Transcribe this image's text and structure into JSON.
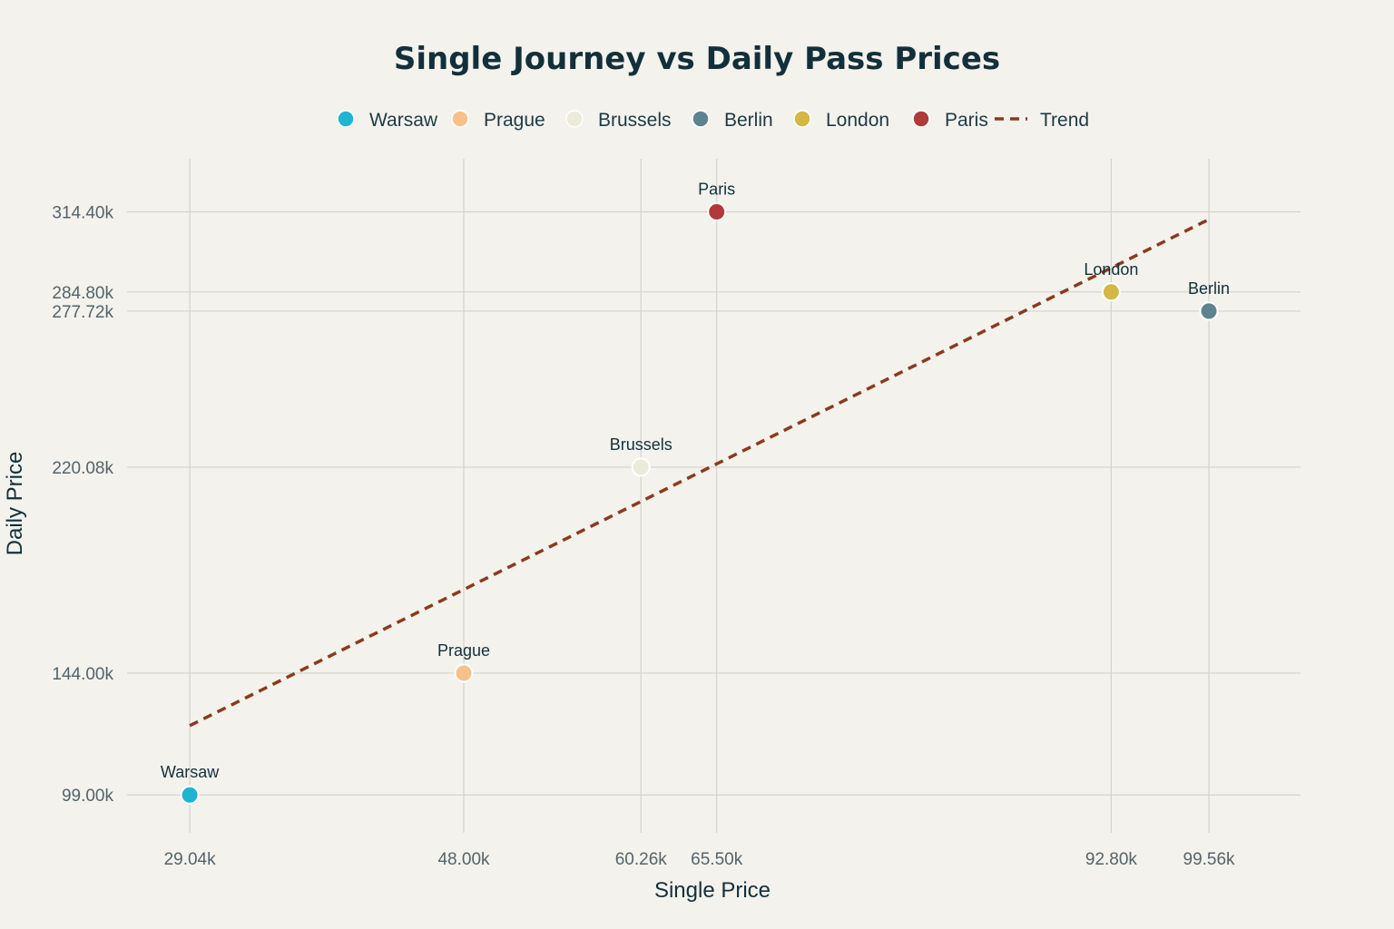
{
  "chart_data": {
    "type": "scatter",
    "title": "Single Journey vs Daily Pass Prices",
    "xlabel": "Single Price",
    "ylabel": "Daily Price",
    "grid": true,
    "legend_position": "top-center",
    "points": [
      {
        "name": "Warsaw",
        "x": 29040,
        "y": 99000,
        "color": "#1fb4cf"
      },
      {
        "name": "Prague",
        "x": 48000,
        "y": 144000,
        "color": "#f8c08a"
      },
      {
        "name": "Brussels",
        "x": 60260,
        "y": 220080,
        "color": "#ecebd9"
      },
      {
        "name": "Berlin",
        "x": 99560,
        "y": 277720,
        "color": "#5e8390"
      },
      {
        "name": "London",
        "x": 92800,
        "y": 284800,
        "color": "#d3b845"
      },
      {
        "name": "Paris",
        "x": 65500,
        "y": 314400,
        "color": "#b03a3a"
      }
    ],
    "legend_order": [
      "Warsaw",
      "Prague",
      "Brussels",
      "Berlin",
      "London",
      "Paris"
    ],
    "trend": {
      "name": "Trend",
      "color": "#8b3a1e",
      "style": "dashed",
      "start": {
        "x": 29040,
        "y": 124600
      },
      "end": {
        "x": 99560,
        "y": 311600
      }
    },
    "x_ticks": [
      {
        "value": 29040,
        "label": "29.04k"
      },
      {
        "value": 48000,
        "label": "48.00k"
      },
      {
        "value": 60260,
        "label": "60.26k"
      },
      {
        "value": 65500,
        "label": "65.50k"
      },
      {
        "value": 92800,
        "label": "92.80k"
      },
      {
        "value": 99560,
        "label": "99.56k"
      }
    ],
    "y_ticks": [
      {
        "value": 99000,
        "label": "99.00k"
      },
      {
        "value": 144000,
        "label": "144.00k"
      },
      {
        "value": 220080,
        "label": "220.08k"
      },
      {
        "value": 277720,
        "label": "277.72k"
      },
      {
        "value": 284800,
        "label": "284.80k"
      },
      {
        "value": 314400,
        "label": "314.40k"
      }
    ],
    "xlim": [
      24700,
      105900
    ],
    "ylim": [
      85000,
      334000
    ]
  }
}
